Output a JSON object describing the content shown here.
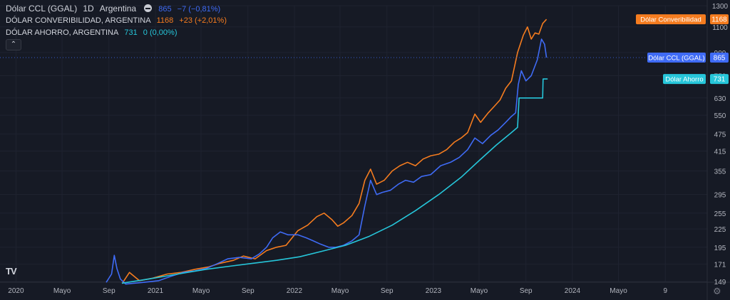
{
  "legend": {
    "main_title": "Dólar CCL (GGAL)",
    "interval": "1D",
    "exchange": "Argentina",
    "main_value": "865",
    "main_change": "−7 (−0,81%)",
    "series2_name": "DÓLAR CONVERIBILIDAD, ARGENTINA",
    "series2_value": "1168",
    "series2_change": "+23 (+2,01%)",
    "series3_name": "DÓLAR AHORRO, ARGENTINA",
    "series3_value": "731",
    "series3_change": "0 (0,00%)",
    "collapse_icon": "chevron-up-icon"
  },
  "logo_text": "TV",
  "colors": {
    "background": "#161a25",
    "orange": "#f57c1f",
    "blue": "#3f6bf5",
    "teal": "#26c6da",
    "axis_text": "#b2b5be",
    "grid": "#1f2330"
  },
  "chart_data": {
    "type": "line",
    "y_scale": "log",
    "ylim": [
      149,
      1300
    ],
    "xlim": [
      "2019-11-20",
      "2024-12-20"
    ],
    "y_ticks": [
      149,
      171,
      195,
      225,
      255,
      295,
      355,
      415,
      475,
      550,
      630,
      750,
      900,
      1100,
      1300
    ],
    "x_ticks": [
      {
        "date": "2020-01-01",
        "label": "2020"
      },
      {
        "date": "2020-05-01",
        "label": "Mayo"
      },
      {
        "date": "2020-09-01",
        "label": "Sep"
      },
      {
        "date": "2021-01-01",
        "label": "2021"
      },
      {
        "date": "2021-05-01",
        "label": "Mayo"
      },
      {
        "date": "2021-09-01",
        "label": "Sep"
      },
      {
        "date": "2022-01-01",
        "label": "2022"
      },
      {
        "date": "2022-05-01",
        "label": "Mayo"
      },
      {
        "date": "2022-09-01",
        "label": "Sep"
      },
      {
        "date": "2023-01-01",
        "label": "2023"
      },
      {
        "date": "2023-05-01",
        "label": "Mayo"
      },
      {
        "date": "2023-09-01",
        "label": "Sep"
      },
      {
        "date": "2024-01-01",
        "label": "2024"
      },
      {
        "date": "2024-05-01",
        "label": "Mayo"
      },
      {
        "date": "2024-09-01",
        "label": "9"
      }
    ],
    "series": [
      {
        "name": "Dólar Converibilidad",
        "color": "#f57c1f",
        "last_value": "1168",
        "points": [
          [
            "2020-10-06",
            147
          ],
          [
            "2020-10-25",
            160
          ],
          [
            "2020-11-20",
            150
          ],
          [
            "2020-12-25",
            153
          ],
          [
            "2021-02-01",
            158
          ],
          [
            "2021-03-10",
            160
          ],
          [
            "2021-04-15",
            164
          ],
          [
            "2021-05-20",
            167
          ],
          [
            "2021-06-20",
            172
          ],
          [
            "2021-07-25",
            176
          ],
          [
            "2021-08-20",
            182
          ],
          [
            "2021-09-20",
            178
          ],
          [
            "2021-10-20",
            190
          ],
          [
            "2021-11-15",
            195
          ],
          [
            "2021-12-10",
            198
          ],
          [
            "2022-01-10",
            222
          ],
          [
            "2022-02-05",
            232
          ],
          [
            "2022-03-01",
            248
          ],
          [
            "2022-03-20",
            255
          ],
          [
            "2022-04-10",
            242
          ],
          [
            "2022-04-25",
            230
          ],
          [
            "2022-05-10",
            236
          ],
          [
            "2022-06-01",
            250
          ],
          [
            "2022-06-20",
            275
          ],
          [
            "2022-07-05",
            330
          ],
          [
            "2022-07-20",
            360
          ],
          [
            "2022-08-05",
            320
          ],
          [
            "2022-08-25",
            330
          ],
          [
            "2022-09-15",
            355
          ],
          [
            "2022-10-05",
            370
          ],
          [
            "2022-10-25",
            380
          ],
          [
            "2022-11-15",
            370
          ],
          [
            "2022-12-05",
            390
          ],
          [
            "2022-12-25",
            400
          ],
          [
            "2023-01-15",
            405
          ],
          [
            "2023-02-05",
            420
          ],
          [
            "2023-02-25",
            445
          ],
          [
            "2023-03-15",
            460
          ],
          [
            "2023-04-01",
            480
          ],
          [
            "2023-04-20",
            555
          ],
          [
            "2023-05-05",
            520
          ],
          [
            "2023-05-25",
            560
          ],
          [
            "2023-06-10",
            590
          ],
          [
            "2023-06-25",
            620
          ],
          [
            "2023-07-10",
            680
          ],
          [
            "2023-07-25",
            720
          ],
          [
            "2023-08-10",
            900
          ],
          [
            "2023-08-25",
            1030
          ],
          [
            "2023-09-05",
            1100
          ],
          [
            "2023-09-15",
            1000
          ],
          [
            "2023-09-25",
            1050
          ],
          [
            "2023-10-05",
            1040
          ],
          [
            "2023-10-15",
            1130
          ],
          [
            "2023-10-25",
            1168
          ]
        ]
      },
      {
        "name": "Dólar CCL (GGAL)",
        "color": "#3f6bf5",
        "last_value": "865",
        "points": [
          [
            "2020-08-25",
            148
          ],
          [
            "2020-09-08",
            158
          ],
          [
            "2020-09-15",
            183
          ],
          [
            "2020-09-22",
            165
          ],
          [
            "2020-10-01",
            152
          ],
          [
            "2020-10-15",
            146
          ],
          [
            "2020-11-05",
            147
          ],
          [
            "2020-12-01",
            148
          ],
          [
            "2021-01-10",
            150
          ],
          [
            "2021-02-10",
            155
          ],
          [
            "2021-03-15",
            160
          ],
          [
            "2021-04-15",
            162
          ],
          [
            "2021-05-15",
            165
          ],
          [
            "2021-06-15",
            172
          ],
          [
            "2021-07-10",
            178
          ],
          [
            "2021-08-10",
            180
          ],
          [
            "2021-09-10",
            178
          ],
          [
            "2021-10-01",
            185
          ],
          [
            "2021-10-20",
            195
          ],
          [
            "2021-11-05",
            210
          ],
          [
            "2021-11-25",
            220
          ],
          [
            "2021-12-15",
            215
          ],
          [
            "2022-01-10",
            215
          ],
          [
            "2022-02-01",
            210
          ],
          [
            "2022-02-20",
            205
          ],
          [
            "2022-03-10",
            200
          ],
          [
            "2022-04-01",
            195
          ],
          [
            "2022-04-20",
            195
          ],
          [
            "2022-05-10",
            198
          ],
          [
            "2022-06-01",
            205
          ],
          [
            "2022-06-20",
            215
          ],
          [
            "2022-07-05",
            270
          ],
          [
            "2022-07-20",
            330
          ],
          [
            "2022-08-05",
            295
          ],
          [
            "2022-08-20",
            300
          ],
          [
            "2022-09-10",
            305
          ],
          [
            "2022-10-01",
            320
          ],
          [
            "2022-10-20",
            330
          ],
          [
            "2022-11-10",
            325
          ],
          [
            "2022-12-01",
            340
          ],
          [
            "2022-12-25",
            345
          ],
          [
            "2023-01-20",
            370
          ],
          [
            "2023-02-15",
            380
          ],
          [
            "2023-03-10",
            395
          ],
          [
            "2023-04-01",
            420
          ],
          [
            "2023-04-20",
            460
          ],
          [
            "2023-05-10",
            440
          ],
          [
            "2023-06-01",
            470
          ],
          [
            "2023-06-20",
            490
          ],
          [
            "2023-07-10",
            520
          ],
          [
            "2023-07-25",
            545
          ],
          [
            "2023-08-05",
            560
          ],
          [
            "2023-08-12",
            700
          ],
          [
            "2023-08-20",
            780
          ],
          [
            "2023-09-01",
            720
          ],
          [
            "2023-09-15",
            750
          ],
          [
            "2023-10-01",
            850
          ],
          [
            "2023-10-12",
            1000
          ],
          [
            "2023-10-20",
            960
          ],
          [
            "2023-10-25",
            865
          ]
        ]
      },
      {
        "name": "Dólar Ahorro",
        "color": "#26c6da",
        "last_value": "731",
        "points": [
          [
            "2020-10-05",
            147
          ],
          [
            "2020-12-15",
            152
          ],
          [
            "2021-03-01",
            158
          ],
          [
            "2021-05-15",
            164
          ],
          [
            "2021-07-15",
            168
          ],
          [
            "2021-09-15",
            172
          ],
          [
            "2021-11-15",
            176
          ],
          [
            "2022-01-15",
            181
          ],
          [
            "2022-03-15",
            189
          ],
          [
            "2022-05-15",
            198
          ],
          [
            "2022-07-15",
            212
          ],
          [
            "2022-09-15",
            232
          ],
          [
            "2022-11-15",
            260
          ],
          [
            "2023-01-15",
            295
          ],
          [
            "2023-03-15",
            338
          ],
          [
            "2023-05-01",
            385
          ],
          [
            "2023-06-15",
            435
          ],
          [
            "2023-07-25",
            480
          ],
          [
            "2023-08-10",
            500
          ],
          [
            "2023-08-14",
            630
          ],
          [
            "2023-09-15",
            630
          ],
          [
            "2023-10-15",
            630
          ],
          [
            "2023-10-16",
            731
          ],
          [
            "2023-10-28",
            731
          ]
        ]
      }
    ]
  }
}
